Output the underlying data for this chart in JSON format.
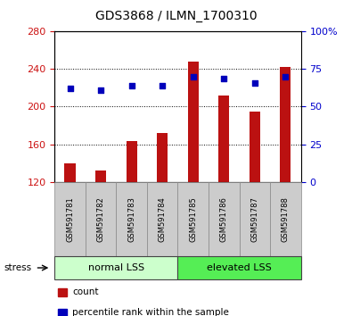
{
  "title": "GDS3868 / ILMN_1700310",
  "samples": [
    "GSM591781",
    "GSM591782",
    "GSM591783",
    "GSM591784",
    "GSM591785",
    "GSM591786",
    "GSM591787",
    "GSM591788"
  ],
  "counts": [
    140,
    132,
    163,
    172,
    248,
    212,
    195,
    242
  ],
  "percentile_ranks": [
    62,
    61,
    64,
    64,
    70,
    69,
    66,
    70
  ],
  "ymin": 120,
  "ymax": 280,
  "yticks": [
    120,
    160,
    200,
    240,
    280
  ],
  "right_yticks": [
    0,
    25,
    50,
    75,
    100
  ],
  "right_ytick_labels": [
    "0",
    "25",
    "50",
    "75",
    "100%"
  ],
  "groups": [
    {
      "label": "normal LSS",
      "start": 0,
      "end": 4,
      "color": "#ccffcc"
    },
    {
      "label": "elevated LSS",
      "start": 4,
      "end": 8,
      "color": "#55ee55"
    }
  ],
  "bar_color": "#bb1111",
  "dot_color": "#0000bb",
  "bar_bottom": 120,
  "legend_items": [
    {
      "color": "#bb1111",
      "label": "count"
    },
    {
      "color": "#0000bb",
      "label": "percentile rank within the sample"
    }
  ],
  "stress_label": "stress",
  "left_ylabel_color": "#cc1111",
  "right_ylabel_color": "#0000cc"
}
